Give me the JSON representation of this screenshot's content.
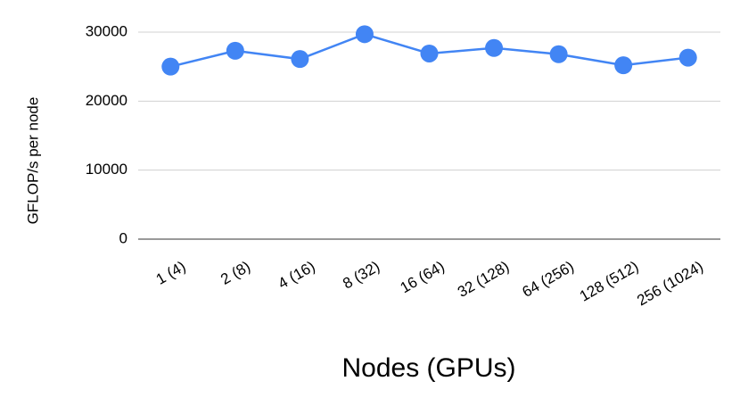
{
  "chart_data": {
    "type": "line",
    "x_label": "Nodes (GPUs)",
    "y_label": "GFLOP/s per node",
    "categories": [
      "1 (4)",
      "2 (8)",
      "4 (16)",
      "8 (32)",
      "16 (64)",
      "32 (128)",
      "64 (256)",
      "128 (512)",
      "256 (1024)"
    ],
    "series": [
      {
        "name": "GFLOP/s per node",
        "color": "#4285f4",
        "values": [
          25000,
          27300,
          26100,
          29700,
          26900,
          27700,
          26800,
          25200,
          26300
        ]
      }
    ],
    "ylim": [
      0,
      30000
    ],
    "yticks": [
      0,
      10000,
      20000,
      30000
    ],
    "grid": true
  }
}
